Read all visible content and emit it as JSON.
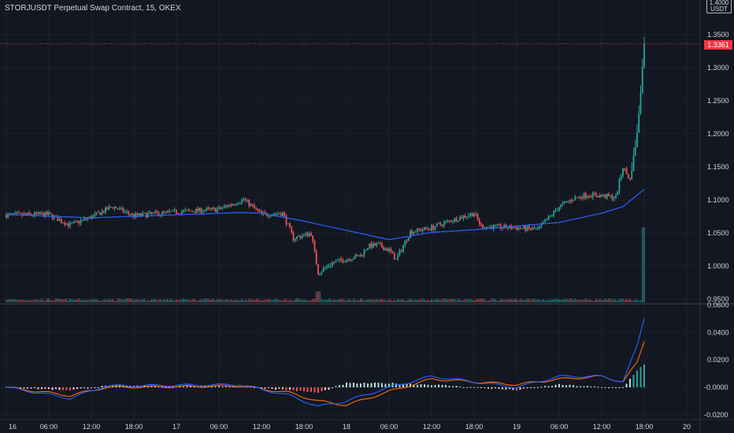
{
  "header": {
    "title": "STORJUSDT Perpetual Swap Contract, 15, OKEX"
  },
  "axis": {
    "unit_lines": [
      "1.4000",
      "USDT"
    ],
    "price_ticks": [
      "1.3500",
      "1.3000",
      "1.2500",
      "1.2000",
      "1.1500",
      "1.1000",
      "1.0500",
      "1.0000",
      "0.9500"
    ],
    "macd_ticks": [
      "0.0600",
      "0.0400",
      "0.0200",
      "-0.0000",
      "-0.0200"
    ],
    "time_ticks": [
      "16",
      "06:00",
      "12:00",
      "18:00",
      "17",
      "06:00",
      "12:00",
      "18:00",
      "18",
      "06:00",
      "12:00",
      "18:00",
      "19",
      "06:00",
      "12:00",
      "18:00",
      "20"
    ]
  },
  "last_price": {
    "label": "1.3361",
    "value": 1.3361
  },
  "colors": {
    "background": "#131722",
    "up": "#26a69a",
    "down": "#ef5350",
    "ma": "#2962ff",
    "macd": "#2962ff",
    "signal": "#ff6d00",
    "grid": "#1e222d",
    "axis_text": "#d1d4dc",
    "last_price_tag": "#f23645"
  },
  "chart_data": [
    {
      "type": "candlestick",
      "title": "STORJUSDT Perpetual Swap Contract, 15, OKEX",
      "interval_minutes": 15,
      "x_range": [
        "16 00:00",
        "20 02:00"
      ],
      "ylim": [
        0.945,
        1.405
      ],
      "overlays": [
        "moving average (blue)"
      ],
      "volume_histogram": true,
      "price_path_keyframes": [
        [
          "16 00:00",
          1.077
        ],
        [
          "16 06:00",
          1.078
        ],
        [
          "16 09:00",
          1.062
        ],
        [
          "16 12:00",
          1.074
        ],
        [
          "16 15:00",
          1.09
        ],
        [
          "16 18:00",
          1.076
        ],
        [
          "17 00:00",
          1.082
        ],
        [
          "17 06:00",
          1.086
        ],
        [
          "17 09:30",
          1.101
        ],
        [
          "17 12:00",
          1.078
        ],
        [
          "17 15:00",
          1.08
        ],
        [
          "17 16:30",
          1.042
        ],
        [
          "17 19:00",
          1.05
        ],
        [
          "17 20:00",
          0.99
        ],
        [
          "17 22:00",
          1.005
        ],
        [
          "18 02:00",
          1.016
        ],
        [
          "18 03:00",
          1.03
        ],
        [
          "18 04:30",
          1.032
        ],
        [
          "18 06:00",
          1.024
        ],
        [
          "18 07:00",
          1.01
        ],
        [
          "18 09:00",
          1.052
        ],
        [
          "18 12:00",
          1.058
        ],
        [
          "18 15:00",
          1.07
        ],
        [
          "18 18:00",
          1.08
        ],
        [
          "18 19:00",
          1.06
        ],
        [
          "19 00:00",
          1.058
        ],
        [
          "19 03:00",
          1.055
        ],
        [
          "19 06:00",
          1.09
        ],
        [
          "19 08:00",
          1.102
        ],
        [
          "19 10:00",
          1.108
        ],
        [
          "19 14:00",
          1.104
        ],
        [
          "19 15:00",
          1.15
        ],
        [
          "19 16:00",
          1.13
        ],
        [
          "19 17:00",
          1.2
        ],
        [
          "19 17:30",
          1.265
        ],
        [
          "19 18:00",
          1.3361
        ]
      ],
      "moving_average_keyframes": [
        [
          "16 00:00",
          1.078
        ],
        [
          "16 12:00",
          1.073
        ],
        [
          "17 09:00",
          1.081
        ],
        [
          "17 12:00",
          1.08
        ],
        [
          "17 18:00",
          1.068
        ],
        [
          "18 06:00",
          1.04
        ],
        [
          "18 12:00",
          1.051
        ],
        [
          "18 18:00",
          1.055
        ],
        [
          "19 06:00",
          1.066
        ],
        [
          "19 12:00",
          1.08
        ],
        [
          "19 15:00",
          1.09
        ],
        [
          "19 18:00",
          1.116
        ]
      ]
    },
    {
      "type": "line",
      "title": "MACD",
      "ylim": [
        -0.024,
        0.062
      ],
      "series": [
        {
          "role": "macd",
          "color": "#2962ff",
          "keyframes": [
            [
              "16 00:00",
              0.0
            ],
            [
              "16 09:00",
              -0.008
            ],
            [
              "16 14:00",
              0.001
            ],
            [
              "17 09:00",
              0.002
            ],
            [
              "17 16:00",
              -0.006
            ],
            [
              "17 20:00",
              -0.014
            ],
            [
              "18 00:00",
              -0.01
            ],
            [
              "18 06:00",
              0.0
            ],
            [
              "18 12:00",
              0.008
            ],
            [
              "19 00:00",
              0.0
            ],
            [
              "19 06:00",
              0.008
            ],
            [
              "19 12:00",
              0.008
            ],
            [
              "19 15:00",
              0.004
            ],
            [
              "19 17:00",
              0.03
            ],
            [
              "19 18:00",
              0.051
            ]
          ]
        },
        {
          "role": "signal",
          "color": "#ff6d00",
          "keyframes": [
            [
              "16 00:00",
              0.0
            ],
            [
              "16 09:00",
              -0.006
            ],
            [
              "16 14:00",
              0.0
            ],
            [
              "17 09:00",
              0.001
            ],
            [
              "17 16:00",
              -0.004
            ],
            [
              "17 20:00",
              -0.01
            ],
            [
              "18 00:00",
              -0.013
            ],
            [
              "18 06:00",
              -0.003
            ],
            [
              "18 12:00",
              0.006
            ],
            [
              "19 00:00",
              0.002
            ],
            [
              "19 06:00",
              0.006
            ],
            [
              "19 12:00",
              0.008
            ],
            [
              "19 15:00",
              0.004
            ],
            [
              "19 17:00",
              0.018
            ],
            [
              "19 18:00",
              0.034
            ]
          ]
        },
        {
          "role": "histogram",
          "color": "#26a69a",
          "keyframes": [
            [
              "19 15:00",
              0.002
            ],
            [
              "19 16:00",
              0.006
            ],
            [
              "19 17:00",
              0.012
            ],
            [
              "19 18:00",
              0.017
            ]
          ]
        }
      ]
    }
  ]
}
